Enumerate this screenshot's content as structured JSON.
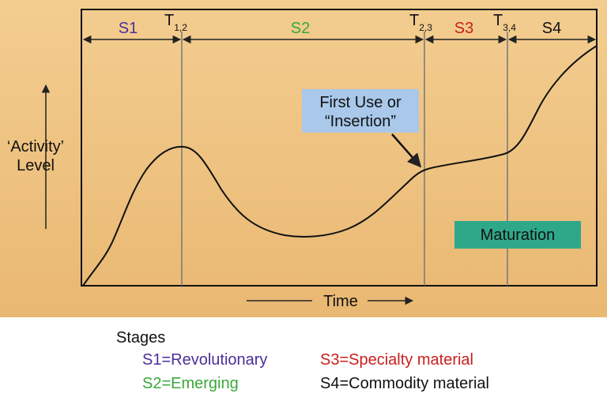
{
  "stages": [
    "S1",
    "S2",
    "S3",
    "S4"
  ],
  "transitions": [
    {
      "letter": "T",
      "sub": "1,2"
    },
    {
      "letter": "T",
      "sub": "2,3"
    },
    {
      "letter": "T",
      "sub": "3,4"
    }
  ],
  "y_label": [
    "‘Activity’",
    "Level"
  ],
  "x_label": "Time",
  "callout": [
    "First Use or",
    "“Insertion”"
  ],
  "phase_box": "Maturation",
  "legend": {
    "title": "Stages",
    "items": [
      "S1=Revolutionary",
      "S2=Emerging",
      "S3=Specialty material",
      "S4=Commodity material"
    ]
  }
}
